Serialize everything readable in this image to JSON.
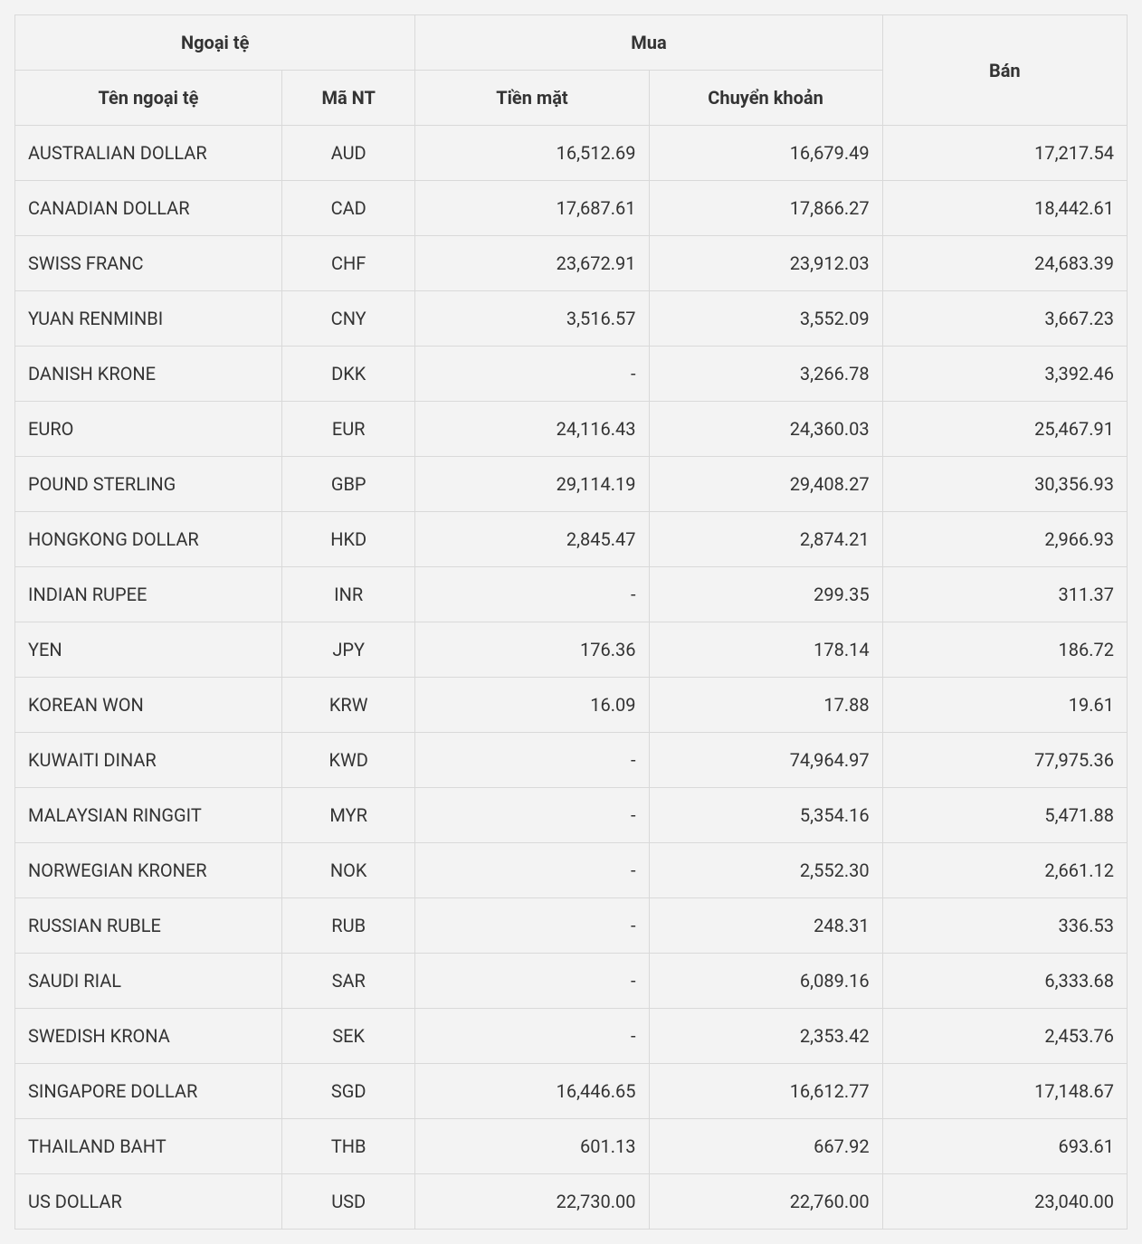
{
  "table": {
    "type": "table",
    "background_color": "#f3f3f3",
    "border_color": "#d9d9d9",
    "text_color": "#333333",
    "header_font_weight": 700,
    "body_font_weight": 400,
    "font_size_pt": 15,
    "header": {
      "currency_group": "Ngoại tệ",
      "buy_group": "Mua",
      "sell": "Bán",
      "name": "Tên ngoại tệ",
      "code": "Mã NT",
      "cash": "Tiền mặt",
      "transfer": "Chuyển khoản"
    },
    "column_widths_pct": [
      24,
      12,
      21,
      21,
      22
    ],
    "column_alignment": [
      "left",
      "center",
      "right",
      "right",
      "right"
    ],
    "rows": [
      {
        "name": "AUSTRALIAN DOLLAR",
        "code": "AUD",
        "cash": "16,512.69",
        "transfer": "16,679.49",
        "sell": "17,217.54"
      },
      {
        "name": "CANADIAN DOLLAR",
        "code": "CAD",
        "cash": "17,687.61",
        "transfer": "17,866.27",
        "sell": "18,442.61"
      },
      {
        "name": "SWISS FRANC",
        "code": "CHF",
        "cash": "23,672.91",
        "transfer": "23,912.03",
        "sell": "24,683.39"
      },
      {
        "name": "YUAN RENMINBI",
        "code": "CNY",
        "cash": "3,516.57",
        "transfer": "3,552.09",
        "sell": "3,667.23"
      },
      {
        "name": "DANISH KRONE",
        "code": "DKK",
        "cash": "-",
        "transfer": "3,266.78",
        "sell": "3,392.46"
      },
      {
        "name": "EURO",
        "code": "EUR",
        "cash": "24,116.43",
        "transfer": "24,360.03",
        "sell": "25,467.91"
      },
      {
        "name": "POUND STERLING",
        "code": "GBP",
        "cash": "29,114.19",
        "transfer": "29,408.27",
        "sell": "30,356.93"
      },
      {
        "name": "HONGKONG DOLLAR",
        "code": "HKD",
        "cash": "2,845.47",
        "transfer": "2,874.21",
        "sell": "2,966.93"
      },
      {
        "name": "INDIAN RUPEE",
        "code": "INR",
        "cash": "-",
        "transfer": "299.35",
        "sell": "311.37"
      },
      {
        "name": "YEN",
        "code": "JPY",
        "cash": "176.36",
        "transfer": "178.14",
        "sell": "186.72"
      },
      {
        "name": "KOREAN WON",
        "code": "KRW",
        "cash": "16.09",
        "transfer": "17.88",
        "sell": "19.61"
      },
      {
        "name": "KUWAITI DINAR",
        "code": "KWD",
        "cash": "-",
        "transfer": "74,964.97",
        "sell": "77,975.36"
      },
      {
        "name": "MALAYSIAN RINGGIT",
        "code": "MYR",
        "cash": "-",
        "transfer": "5,354.16",
        "sell": "5,471.88"
      },
      {
        "name": "NORWEGIAN KRONER",
        "code": "NOK",
        "cash": "-",
        "transfer": "2,552.30",
        "sell": "2,661.12"
      },
      {
        "name": "RUSSIAN RUBLE",
        "code": "RUB",
        "cash": "-",
        "transfer": "248.31",
        "sell": "336.53"
      },
      {
        "name": "SAUDI RIAL",
        "code": "SAR",
        "cash": "-",
        "transfer": "6,089.16",
        "sell": "6,333.68"
      },
      {
        "name": "SWEDISH KRONA",
        "code": "SEK",
        "cash": "-",
        "transfer": "2,353.42",
        "sell": "2,453.76"
      },
      {
        "name": "SINGAPORE DOLLAR",
        "code": "SGD",
        "cash": "16,446.65",
        "transfer": "16,612.77",
        "sell": "17,148.67"
      },
      {
        "name": "THAILAND BAHT",
        "code": "THB",
        "cash": "601.13",
        "transfer": "667.92",
        "sell": "693.61"
      },
      {
        "name": "US DOLLAR",
        "code": "USD",
        "cash": "22,730.00",
        "transfer": "22,760.00",
        "sell": "23,040.00"
      }
    ]
  }
}
